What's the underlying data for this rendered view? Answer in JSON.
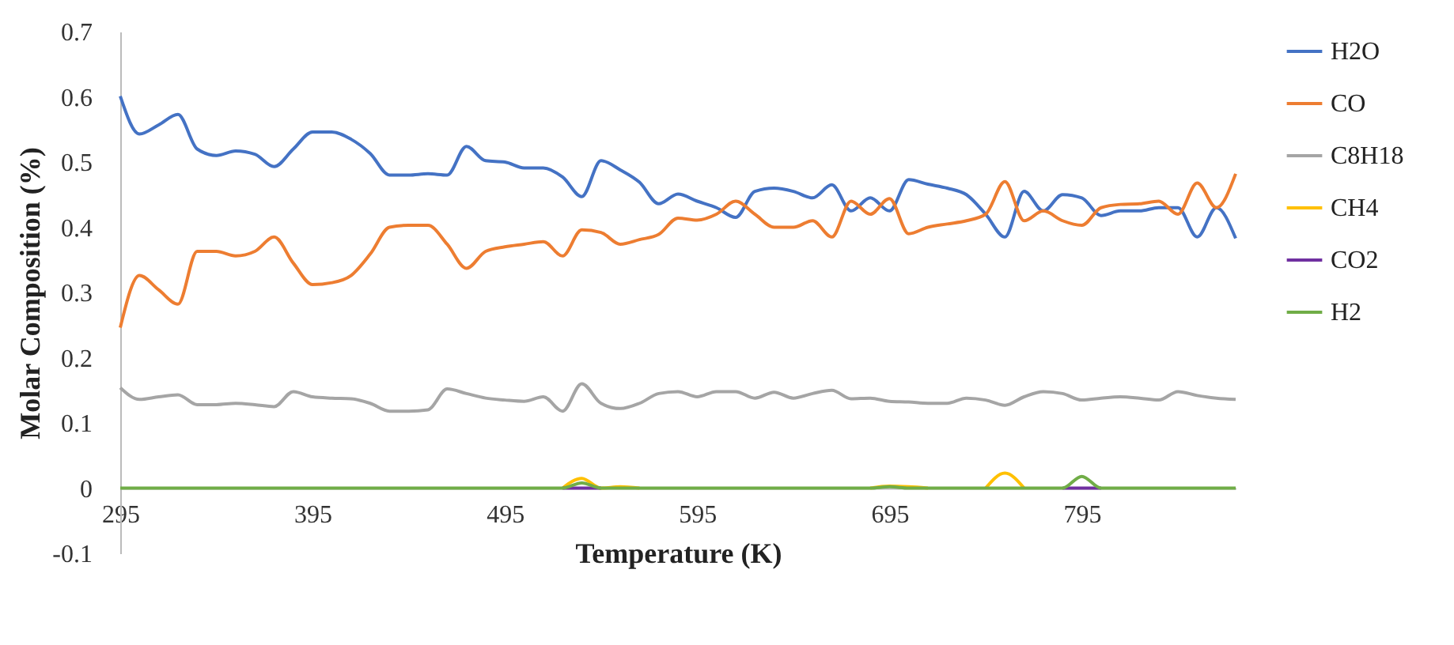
{
  "chart_data": {
    "type": "line",
    "xlabel": "Temperature (K)",
    "ylabel": "Molar Composition (%)",
    "x": [
      295,
      305,
      315,
      325,
      335,
      345,
      355,
      365,
      375,
      385,
      395,
      405,
      415,
      425,
      435,
      445,
      455,
      465,
      475,
      485,
      495,
      505,
      515,
      525,
      535,
      545,
      555,
      565,
      575,
      585,
      595,
      605,
      615,
      625,
      635,
      645,
      655,
      665,
      675,
      685,
      695,
      705,
      715,
      725,
      735,
      745,
      755,
      765,
      775,
      785,
      795,
      805,
      815,
      825,
      835,
      845,
      855,
      865,
      875
    ],
    "series": [
      {
        "name": "H2O",
        "color": "#4472c4",
        "values": [
          0.601,
          0.543,
          0.557,
          0.573,
          0.52,
          0.51,
          0.517,
          0.512,
          0.493,
          0.52,
          0.546,
          0.546,
          0.535,
          0.513,
          0.48,
          0.48,
          0.482,
          0.48,
          0.524,
          0.502,
          0.5,
          0.491,
          0.491,
          0.477,
          0.447,
          0.502,
          0.488,
          0.469,
          0.436,
          0.451,
          0.44,
          0.43,
          0.415,
          0.455,
          0.46,
          0.455,
          0.445,
          0.465,
          0.425,
          0.445,
          0.425,
          0.473,
          0.466,
          0.46,
          0.45,
          0.42,
          0.385,
          0.455,
          0.425,
          0.45,
          0.445,
          0.418,
          0.425,
          0.425,
          0.43,
          0.43,
          0.385,
          0.43,
          0.383
        ]
      },
      {
        "name": "CO",
        "color": "#ed7d31",
        "values": [
          0.246,
          0.326,
          0.304,
          0.282,
          0.363,
          0.363,
          0.356,
          0.363,
          0.385,
          0.345,
          0.312,
          0.315,
          0.326,
          0.359,
          0.4,
          0.403,
          0.403,
          0.374,
          0.337,
          0.363,
          0.37,
          0.374,
          0.378,
          0.356,
          0.396,
          0.392,
          0.374,
          0.381,
          0.389,
          0.414,
          0.411,
          0.42,
          0.44,
          0.42,
          0.4,
          0.4,
          0.41,
          0.385,
          0.44,
          0.42,
          0.444,
          0.39,
          0.4,
          0.405,
          0.41,
          0.42,
          0.47,
          0.41,
          0.425,
          0.41,
          0.403,
          0.43,
          0.435,
          0.436,
          0.44,
          0.42,
          0.468,
          0.43,
          0.482
        ]
      },
      {
        "name": "C8H18",
        "color": "#a5a5a5",
        "values": [
          0.154,
          0.136,
          0.14,
          0.143,
          0.128,
          0.128,
          0.13,
          0.128,
          0.125,
          0.148,
          0.14,
          0.138,
          0.137,
          0.13,
          0.118,
          0.118,
          0.12,
          0.152,
          0.145,
          0.138,
          0.135,
          0.133,
          0.14,
          0.118,
          0.16,
          0.13,
          0.122,
          0.13,
          0.145,
          0.148,
          0.14,
          0.148,
          0.148,
          0.138,
          0.147,
          0.138,
          0.145,
          0.15,
          0.137,
          0.138,
          0.133,
          0.132,
          0.13,
          0.13,
          0.138,
          0.135,
          0.127,
          0.14,
          0.148,
          0.145,
          0.135,
          0.138,
          0.14,
          0.138,
          0.135,
          0.148,
          0.142,
          0.138,
          0.136
        ]
      },
      {
        "name": "CH4",
        "color": "#ffc000",
        "values": [
          null,
          null,
          null,
          null,
          null,
          null,
          null,
          null,
          null,
          null,
          null,
          null,
          null,
          null,
          null,
          null,
          null,
          null,
          null,
          null,
          null,
          null,
          null,
          0,
          0.015,
          0,
          0.002,
          0,
          null,
          null,
          null,
          null,
          null,
          null,
          null,
          null,
          null,
          null,
          null,
          0,
          0.003,
          0.002,
          0,
          null,
          null,
          0,
          0.023,
          0,
          null,
          null,
          null,
          null,
          null,
          null,
          null,
          null,
          null,
          null,
          null
        ]
      },
      {
        "name": "CO2",
        "color": "#7030a0",
        "values": [
          null,
          null,
          null,
          null,
          null,
          null,
          null,
          null,
          null,
          null,
          null,
          null,
          null,
          null,
          null,
          null,
          null,
          null,
          null,
          null,
          null,
          null,
          null,
          0,
          0,
          0,
          null,
          null,
          null,
          null,
          null,
          null,
          null,
          null,
          null,
          null,
          null,
          null,
          null,
          null,
          null,
          null,
          null,
          null,
          null,
          null,
          null,
          null,
          null,
          0,
          0,
          0,
          null,
          null,
          null,
          null,
          null,
          null,
          null
        ]
      },
      {
        "name": "H2",
        "color": "#70ad47",
        "values": [
          0,
          0,
          0,
          0,
          0,
          0,
          0,
          0,
          0,
          0,
          0,
          0,
          0,
          0,
          0,
          0,
          0,
          0,
          0,
          0,
          0,
          0,
          0,
          0,
          0.008,
          0,
          0,
          0,
          0,
          0,
          0,
          0,
          0,
          0,
          0,
          0,
          0,
          0,
          0,
          0,
          0.002,
          0,
          0,
          0,
          0,
          0,
          0,
          0,
          0,
          0,
          0.018,
          0,
          0,
          0,
          0,
          0,
          0,
          0,
          0
        ]
      }
    ],
    "xlim": [
      295,
      875
    ],
    "xticks": [
      295,
      395,
      495,
      595,
      695,
      795
    ],
    "ylim": [
      -0.1,
      0.7
    ],
    "yticks": [
      -0.1,
      0,
      0.1,
      0.2,
      0.3,
      0.4,
      0.5,
      0.6,
      0.7
    ],
    "grid": false,
    "legend": "right",
    "marker": "none",
    "line_style": "solid"
  }
}
